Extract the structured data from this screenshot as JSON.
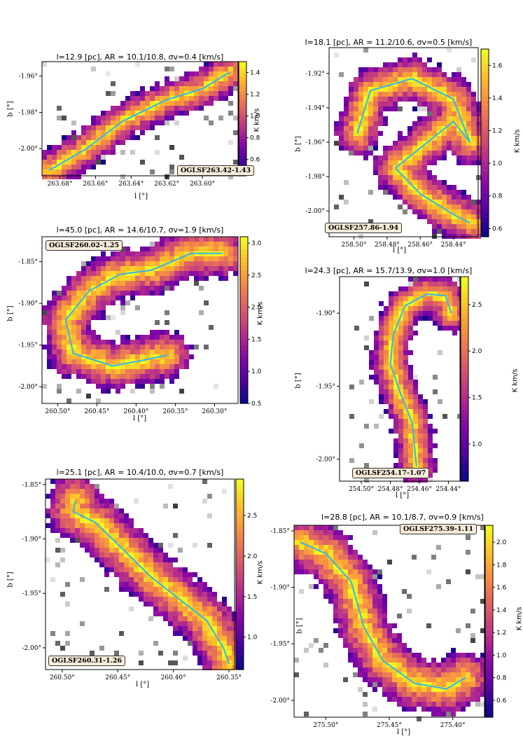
{
  "chart_data": [
    {
      "type": "heatmap",
      "title": "l=12.9 [pc], AR = 10.1/10.8, σv=0.4 [km/s]",
      "id_label": "OGLSF263.42-1.43",
      "xlabel": "l [°]",
      "ylabel": "b [°]",
      "colorbar_label": "K km/s",
      "xlim": [
        263.69,
        263.58
      ],
      "ylim": [
        -2.015,
        -1.952
      ],
      "xticks": [
        "263.68°",
        "263.66°",
        "263.64°",
        "263.62°",
        "263.60°"
      ],
      "xtick_values": [
        263.68,
        263.66,
        263.64,
        263.62,
        263.6
      ],
      "yticks": [
        "-1.96°",
        "-1.98°",
        "-2.00°"
      ],
      "ytick_values": [
        -1.96,
        -1.98,
        -2.0
      ],
      "cbar_range": [
        0.45,
        1.5
      ],
      "cbar_ticks": [
        "0.6",
        "0.8",
        "1.0",
        "1.2",
        "1.4"
      ],
      "cbar_tick_values": [
        0.6,
        0.8,
        1.0,
        1.2,
        1.4
      ],
      "spine": [
        [
          263.686,
          -2.012
        ],
        [
          263.665,
          -2.0
        ],
        [
          263.645,
          -1.985
        ],
        [
          263.62,
          -1.973
        ],
        [
          263.6,
          -1.967
        ],
        [
          263.585,
          -1.958
        ]
      ]
    },
    {
      "type": "heatmap",
      "title": "l=18.1 [pc], AR = 11.2/10.6, σv=0.5 [km/s]",
      "id_label": "OGLSF257.86-1.94",
      "xlabel": "l [°]",
      "ylabel": "b [°]",
      "colorbar_label": "K km/s",
      "xlim": [
        258.515,
        258.425
      ],
      "ylim": [
        -2.015,
        -1.905
      ],
      "xticks": [
        "258.50°",
        "258.48°",
        "258.46°",
        "258.44°"
      ],
      "xtick_values": [
        258.5,
        258.48,
        258.46,
        258.44
      ],
      "yticks": [
        "-1.92°",
        "-1.94°",
        "-1.96°",
        "-1.98°",
        "-2.00°"
      ],
      "ytick_values": [
        -1.92,
        -1.94,
        -1.96,
        -1.98,
        -2.0
      ],
      "cbar_range": [
        0.55,
        1.7
      ],
      "cbar_ticks": [
        "0.6",
        "0.8",
        "1.0",
        "1.2",
        "1.4",
        "1.6"
      ],
      "cbar_tick_values": [
        0.6,
        0.8,
        1.0,
        1.2,
        1.4,
        1.6
      ],
      "spine": [
        [
          258.498,
          -1.955
        ],
        [
          258.49,
          -1.93
        ],
        [
          258.465,
          -1.923
        ],
        [
          258.44,
          -1.935
        ],
        [
          258.43,
          -1.96
        ],
        [
          258.44,
          -1.948
        ],
        [
          258.475,
          -1.975
        ],
        [
          258.46,
          -1.99
        ],
        [
          258.44,
          -2.002
        ],
        [
          258.43,
          -2.007
        ]
      ]
    },
    {
      "type": "heatmap",
      "title": "l=45.0 [pc], AR = 14.6/10.7, σv=1.9 [km/s]",
      "id_label": "OGLSF260.02-1.25",
      "xlabel": "l [°]",
      "ylabel": "b [°]",
      "colorbar_label": "K km/s",
      "xlim": [
        260.52,
        260.27
      ],
      "ylim": [
        -2.02,
        -1.82
      ],
      "xticks": [
        "260.50°",
        "260.45°",
        "260.40°",
        "260.35°",
        "260.30°"
      ],
      "xtick_values": [
        260.5,
        260.45,
        260.4,
        260.35,
        260.3
      ],
      "yticks": [
        "-1.85°",
        "-1.90°",
        "-1.95°",
        "-2.00°"
      ],
      "ytick_values": [
        -1.85,
        -1.9,
        -1.95,
        -2.0
      ],
      "cbar_range": [
        0.5,
        3.1
      ],
      "cbar_ticks": [
        "0.5",
        "1.0",
        "1.5",
        "2.0",
        "2.5",
        "3.0"
      ],
      "cbar_tick_values": [
        0.5,
        1.0,
        1.5,
        2.0,
        2.5,
        3.0
      ],
      "spine": [
        [
          260.29,
          -1.84
        ],
        [
          260.33,
          -1.84
        ],
        [
          260.38,
          -1.86
        ],
        [
          260.42,
          -1.865
        ],
        [
          260.46,
          -1.885
        ],
        [
          260.49,
          -1.92
        ],
        [
          260.48,
          -1.96
        ],
        [
          260.43,
          -1.975
        ],
        [
          260.39,
          -1.968
        ],
        [
          260.36,
          -1.962
        ]
      ]
    },
    {
      "type": "heatmap",
      "title": "l=24.3 [pc], AR = 15.7/13.9, σv=1.0 [km/s]",
      "id_label": "OGLSF254.17-1.07",
      "xlabel": "l [°]",
      "ylabel": "b [°]",
      "colorbar_label": "K km/s",
      "xlim": [
        254.515,
        254.432
      ],
      "ylim": [
        -2.015,
        -1.875
      ],
      "xticks": [
        "254.50°",
        "254.48°",
        "254.46°",
        "254.44°"
      ],
      "xtick_values": [
        254.5,
        254.48,
        254.46,
        254.44
      ],
      "yticks": [
        "-1.90°",
        "-1.95°",
        "-2.00°"
      ],
      "ytick_values": [
        -1.9,
        -1.95,
        -2.0
      ],
      "cbar_range": [
        0.6,
        2.8
      ],
      "cbar_ticks": [
        "1.0",
        "1.5",
        "2.0",
        "2.5"
      ],
      "cbar_tick_values": [
        1.0,
        1.5,
        2.0,
        2.5
      ],
      "spine": [
        [
          254.438,
          -1.9
        ],
        [
          254.442,
          -1.888
        ],
        [
          254.455,
          -1.887
        ],
        [
          254.47,
          -1.895
        ],
        [
          254.478,
          -1.915
        ],
        [
          254.48,
          -1.935
        ],
        [
          254.473,
          -1.955
        ],
        [
          254.465,
          -1.975
        ],
        [
          254.463,
          -1.995
        ],
        [
          254.462,
          -2.005
        ]
      ]
    },
    {
      "type": "heatmap",
      "title": "l=25.1 [pc], AR = 10.4/10.0, σv=0.7 [km/s]",
      "id_label": "OGLSF260.31-1.26",
      "xlabel": "l [°]",
      "ylabel": "b [°]",
      "colorbar_label": "K km/s",
      "xlim": [
        260.515,
        260.345
      ],
      "ylim": [
        -2.02,
        -1.845
      ],
      "xticks": [
        "260.50°",
        "260.45°",
        "260.40°",
        "260.35°"
      ],
      "xtick_values": [
        260.5,
        260.45,
        260.4,
        260.35
      ],
      "yticks": [
        "-1.85°",
        "-1.90°",
        "-1.95°",
        "-2.00°"
      ],
      "ytick_values": [
        -1.85,
        -1.9,
        -1.95,
        -2.0
      ],
      "cbar_range": [
        0.6,
        2.95
      ],
      "cbar_ticks": [
        "1.0",
        "1.5",
        "2.0",
        "2.5"
      ],
      "cbar_tick_values": [
        1.0,
        1.5,
        2.0,
        2.5
      ],
      "spine": [
        [
          260.488,
          -1.865
        ],
        [
          260.49,
          -1.875
        ],
        [
          260.47,
          -1.885
        ],
        [
          260.445,
          -1.91
        ],
        [
          260.42,
          -1.935
        ],
        [
          260.395,
          -1.955
        ],
        [
          260.37,
          -1.975
        ],
        [
          260.355,
          -2.0
        ],
        [
          260.35,
          -2.015
        ]
      ]
    },
    {
      "type": "heatmap",
      "title": "l=28.8 [pc], AR = 10.1/8.7, σv=0.9 [km/s]",
      "id_label": "OGLSF275.39-1.11",
      "xlabel": "l [°]",
      "ylabel": "b [°]",
      "colorbar_label": "K km/s",
      "xlim": [
        275.525,
        275.375
      ],
      "ylim": [
        -2.015,
        -1.845
      ],
      "xticks": [
        "275.50°",
        "275.45°",
        "275.40°"
      ],
      "xtick_values": [
        275.5,
        275.45,
        275.4
      ],
      "yticks": [
        "-1.85°",
        "-1.90°",
        "-1.95°",
        "-2.00°"
      ],
      "ytick_values": [
        -1.85,
        -1.9,
        -1.95,
        -2.0
      ],
      "cbar_range": [
        0.45,
        2.15
      ],
      "cbar_ticks": [
        "0.6",
        "0.8",
        "1.0",
        "1.2",
        "1.4",
        "1.6",
        "1.8",
        "2.0"
      ],
      "cbar_tick_values": [
        0.6,
        0.8,
        1.0,
        1.2,
        1.4,
        1.6,
        1.8,
        2.0
      ],
      "spine": [
        [
          275.52,
          -1.86
        ],
        [
          275.5,
          -1.87
        ],
        [
          275.48,
          -1.895
        ],
        [
          275.47,
          -1.935
        ],
        [
          275.455,
          -1.965
        ],
        [
          275.43,
          -1.985
        ],
        [
          275.405,
          -1.99
        ],
        [
          275.39,
          -1.98
        ]
      ]
    }
  ]
}
